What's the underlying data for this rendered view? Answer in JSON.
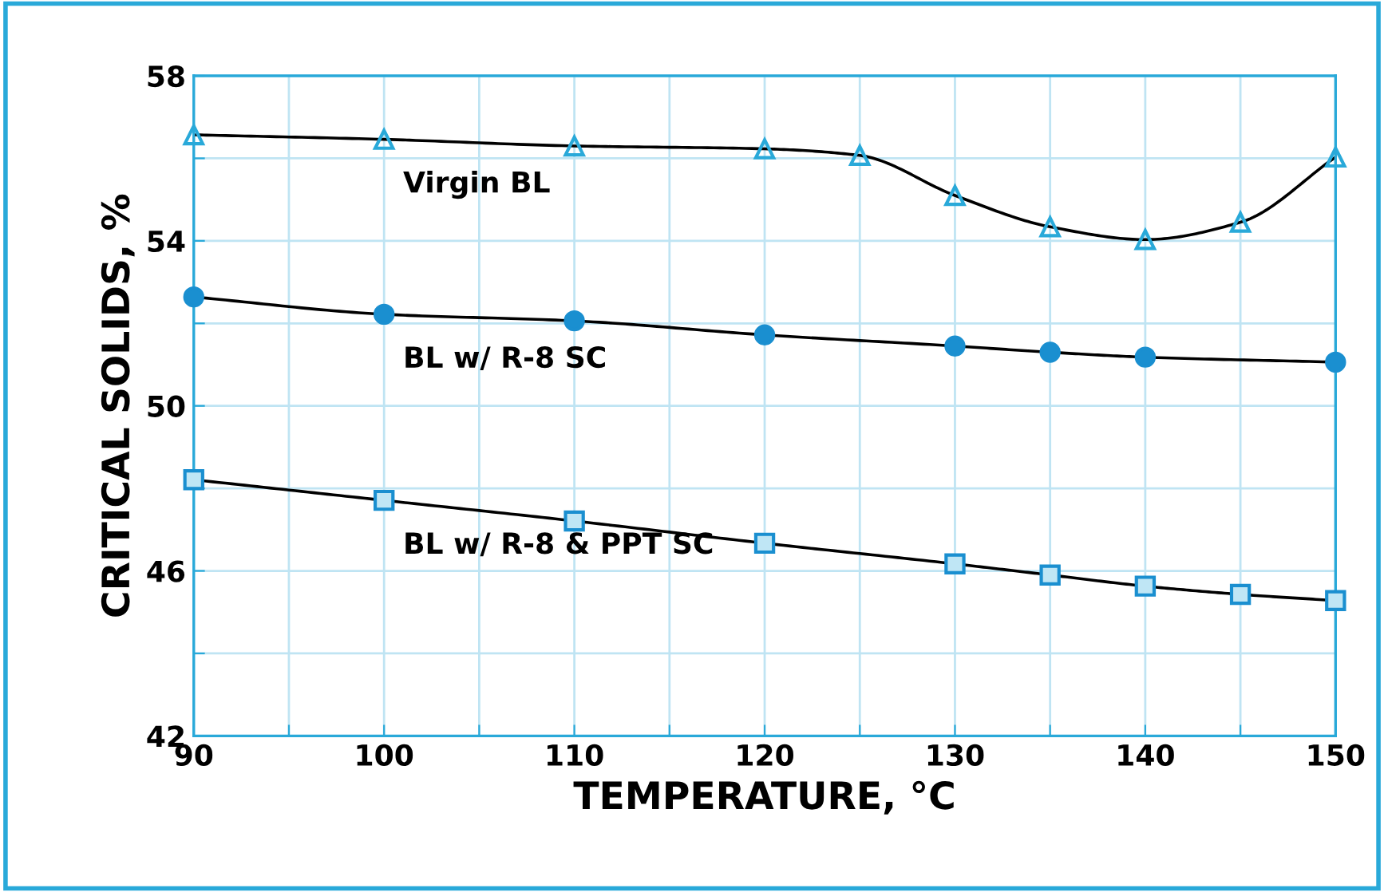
{
  "chart_data": {
    "type": "line",
    "xlabel": "TEMPERATURE, °C",
    "ylabel": "CRITICAL SOLIDS, %",
    "xlim": [
      90,
      150
    ],
    "xticks": [
      90,
      {
        "value": 95,
        "label": null
      },
      100,
      {
        "value": 105,
        "label": null
      },
      110,
      {
        "value": 115,
        "label": null
      },
      120,
      {
        "value": 125,
        "label": null
      },
      130,
      {
        "value": 135,
        "label": null
      },
      140,
      {
        "value": 145,
        "label": null
      },
      150
    ],
    "ylim": [
      42,
      58
    ],
    "yticks": [
      42,
      {
        "value": 44,
        "label": null
      },
      46,
      {
        "value": 48,
        "label": null
      },
      50,
      {
        "value": 52,
        "label": null
      },
      54,
      {
        "value": 56,
        "label": null
      },
      58
    ],
    "grid": true,
    "legend": false,
    "series": [
      {
        "name": "Virgin BL",
        "color": "#29a9d9",
        "marker": "triangle",
        "x": [
          90,
          100,
          110,
          120,
          125,
          130,
          135,
          140,
          145,
          150
        ],
        "values": [
          56.57,
          56.46,
          56.3,
          56.23,
          56.07,
          55.1,
          54.34,
          54.03,
          54.45,
          56.03
        ]
      },
      {
        "name": "BL w/ R-8 SC",
        "color": "#1a8fd0",
        "marker": "circle",
        "x": [
          90,
          100,
          110,
          120,
          130,
          135,
          140,
          150
        ],
        "values": [
          52.64,
          52.22,
          52.06,
          51.72,
          51.45,
          51.3,
          51.18,
          51.06
        ]
      },
      {
        "name": "BL w/ R-8 & PPT SC",
        "color": "#1a8fd0",
        "marker": "square",
        "x": [
          90,
          100,
          110,
          120,
          130,
          135,
          140,
          145,
          150
        ],
        "values": [
          48.21,
          47.71,
          47.21,
          46.67,
          46.17,
          45.9,
          45.63,
          45.43,
          45.28
        ]
      }
    ]
  }
}
